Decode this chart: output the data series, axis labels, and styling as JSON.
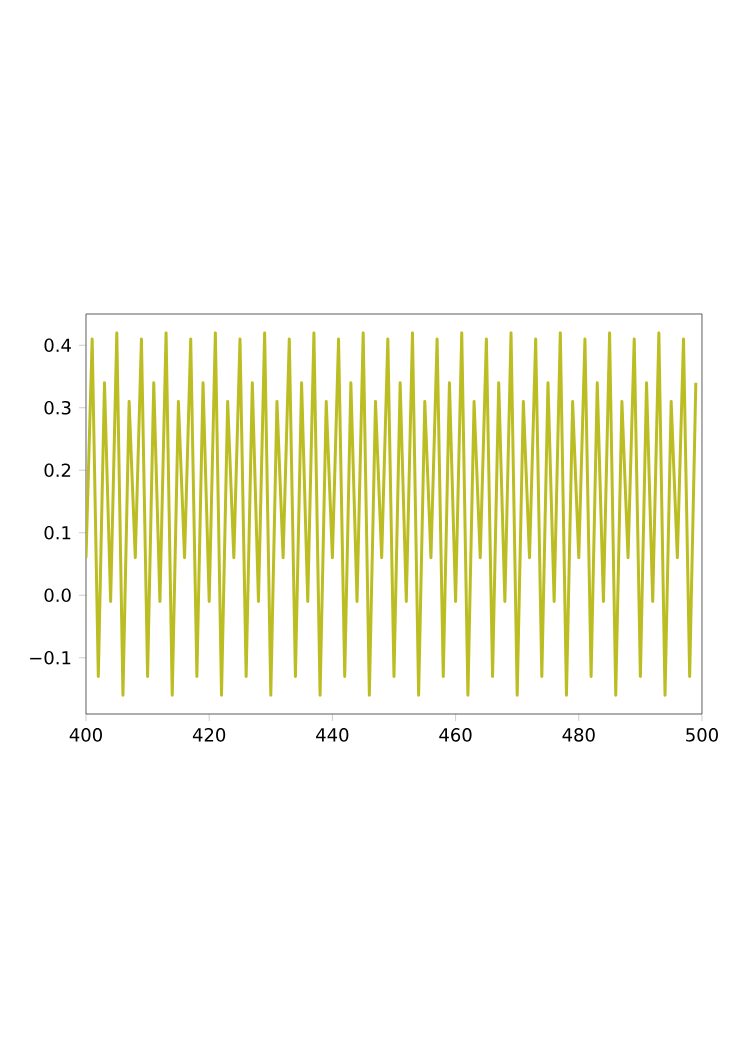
{
  "chart_data": {
    "type": "line",
    "x": [
      400,
      401,
      402,
      403,
      404,
      405,
      406,
      407,
      408,
      409,
      410,
      411,
      412,
      413,
      414,
      415,
      416,
      417,
      418,
      419,
      420,
      421,
      422,
      423,
      424,
      425,
      426,
      427,
      428,
      429,
      430,
      431,
      432,
      433,
      434,
      435,
      436,
      437,
      438,
      439,
      440,
      441,
      442,
      443,
      444,
      445,
      446,
      447,
      448,
      449,
      450,
      451,
      452,
      453,
      454,
      455,
      456,
      457,
      458,
      459,
      460,
      461,
      462,
      463,
      464,
      465,
      466,
      467,
      468,
      469,
      470,
      471,
      472,
      473,
      474,
      475,
      476,
      477,
      478,
      479,
      480,
      481,
      482,
      483,
      484,
      485,
      486,
      487,
      488,
      489,
      490,
      491,
      492,
      493,
      494,
      495,
      496,
      497,
      498,
      499
    ],
    "series": [
      {
        "color": "#bcbd22",
        "values": [
          0.06,
          0.41,
          -0.13,
          0.34,
          -0.01,
          0.42,
          -0.16,
          0.31,
          0.06,
          0.41,
          -0.13,
          0.34,
          -0.01,
          0.42,
          -0.16,
          0.31,
          0.06,
          0.41,
          -0.13,
          0.34,
          -0.01,
          0.42,
          -0.16,
          0.31,
          0.06,
          0.41,
          -0.13,
          0.34,
          -0.01,
          0.42,
          -0.16,
          0.31,
          0.06,
          0.41,
          -0.13,
          0.34,
          -0.01,
          0.42,
          -0.16,
          0.31,
          0.06,
          0.41,
          -0.13,
          0.34,
          -0.01,
          0.42,
          -0.16,
          0.31,
          0.06,
          0.41,
          -0.13,
          0.34,
          -0.01,
          0.42,
          -0.16,
          0.31,
          0.06,
          0.41,
          -0.13,
          0.34,
          -0.01,
          0.42,
          -0.16,
          0.31,
          0.06,
          0.41,
          -0.13,
          0.34,
          -0.01,
          0.42,
          -0.16,
          0.31,
          0.06,
          0.41,
          -0.13,
          0.34,
          -0.01,
          0.42,
          -0.16,
          0.31,
          0.06,
          0.41,
          -0.13,
          0.34,
          -0.01,
          0.42,
          -0.16,
          0.31,
          0.06,
          0.41,
          -0.13,
          0.34,
          -0.01,
          0.42,
          -0.16,
          0.31,
          0.06,
          0.41,
          -0.13,
          0.34
        ]
      }
    ],
    "xlim": [
      400,
      500
    ],
    "ylim": [
      -0.19,
      0.45
    ],
    "xticks": [
      400,
      420,
      440,
      460,
      480,
      500
    ],
    "yticks": [
      {
        "value": -0.1,
        "label": "−0.1"
      },
      {
        "value": 0.0,
        "label": "0.0"
      },
      {
        "value": 0.1,
        "label": "0.1"
      },
      {
        "value": 0.2,
        "label": "0.2"
      },
      {
        "value": 0.3,
        "label": "0.3"
      },
      {
        "value": 0.4,
        "label": "0.4"
      }
    ],
    "marker": "none"
  }
}
